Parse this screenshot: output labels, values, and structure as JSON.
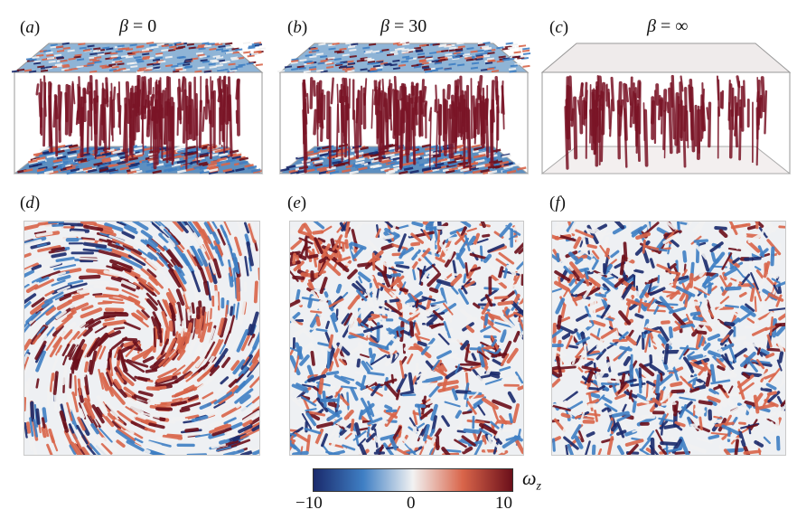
{
  "panels_top": [
    {
      "tag": "a",
      "title_sym": "β",
      "title_val": "= 0",
      "style": "swirl"
    },
    {
      "tag": "b",
      "title_sym": "β",
      "title_val": "= 30",
      "style": "mixed"
    },
    {
      "tag": "c",
      "title_sym": "β",
      "title_val": "= ∞",
      "style": "plumes"
    }
  ],
  "panels_bottom": [
    {
      "tag": "d",
      "style": "vortex"
    },
    {
      "tag": "e",
      "style": "corner"
    },
    {
      "tag": "f",
      "style": "uniform"
    }
  ],
  "colorbar": {
    "label": "ω",
    "label_sub": "z",
    "ticks": [
      "−10",
      "0",
      "10"
    ],
    "colors": [
      "#1a2a6c",
      "#3f7fc4",
      "#f2f2f2",
      "#d9654a",
      "#6b0f1a"
    ]
  }
}
